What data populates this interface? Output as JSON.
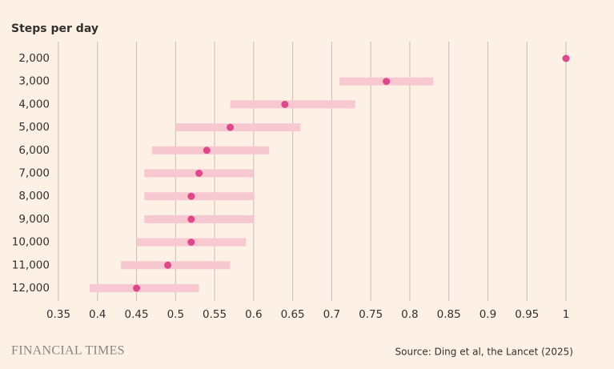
{
  "chart_data": {
    "type": "dot",
    "y_label": "Steps per day",
    "categories": [
      "2,000",
      "3,000",
      "4,000",
      "5,000",
      "6,000",
      "7,000",
      "8,000",
      "9,000",
      "10,000",
      "11,000",
      "12,000"
    ],
    "values": [
      1,
      0.77,
      0.64,
      0.57,
      0.54,
      0.53,
      0.52,
      0.52,
      0.52,
      0.49,
      0.45
    ],
    "low": [
      null,
      0.71,
      0.57,
      0.5,
      0.47,
      0.46,
      0.46,
      0.46,
      0.45,
      0.43,
      0.39
    ],
    "high": [
      null,
      0.83,
      0.73,
      0.66,
      0.62,
      0.6,
      0.6,
      0.6,
      0.59,
      0.57,
      0.53
    ],
    "color": "#e0478a",
    "range_color": "#f8c8d0",
    "xlim": [
      0.35,
      1
    ],
    "xticks": [
      0.35,
      0.4,
      0.45,
      0.5,
      0.55,
      0.6,
      0.65,
      0.7,
      0.75,
      0.8,
      0.85,
      0.9,
      0.95,
      1
    ],
    "grid": true,
    "brand": "FINANCIAL TIMES",
    "source": "Source: Ding et al, the Lancet (2025)"
  }
}
